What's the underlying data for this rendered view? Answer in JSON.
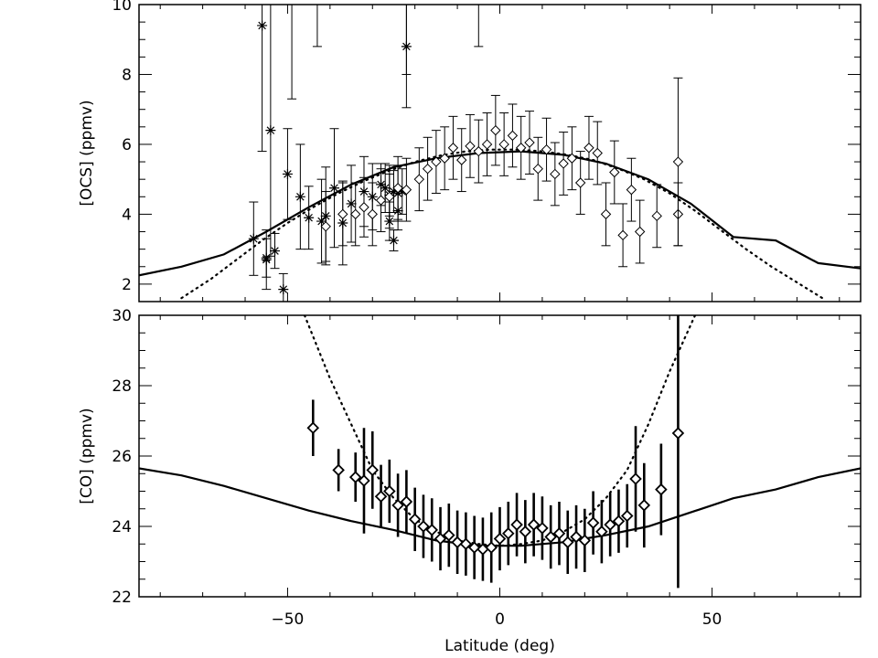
{
  "chart_data": [
    {
      "type": "scatter",
      "panel": "top",
      "ylabel": "[OCS]  (ppmv)",
      "xlim": [
        -85,
        85
      ],
      "ylim": [
        1.5,
        10
      ],
      "xticks": [
        -50,
        0,
        50
      ],
      "yticks": [
        2,
        4,
        6,
        8,
        10
      ],
      "grid": false,
      "series": [
        {
          "kind": "model-solid",
          "x": [
            -85,
            -75,
            -65,
            -55,
            -45,
            -35,
            -25,
            -15,
            -5,
            5,
            15,
            25,
            35,
            45,
            55,
            65,
            75,
            85
          ],
          "y": [
            2.25,
            2.5,
            2.85,
            3.5,
            4.2,
            4.85,
            5.35,
            5.6,
            5.75,
            5.8,
            5.7,
            5.45,
            5.0,
            4.3,
            3.35,
            3.25,
            2.6,
            2.45
          ]
        },
        {
          "kind": "model-dotted",
          "x": [
            -75,
            -68,
            -62,
            -56,
            -50,
            -44,
            -38,
            -32,
            -26,
            -20,
            -14,
            -8,
            -2,
            4,
            10,
            16,
            22,
            28,
            34,
            40,
            46,
            52,
            58,
            64,
            70,
            76
          ],
          "y": [
            1.6,
            2.15,
            2.7,
            3.25,
            3.75,
            4.2,
            4.6,
            4.95,
            5.25,
            5.5,
            5.68,
            5.8,
            5.85,
            5.85,
            5.8,
            5.7,
            5.55,
            5.3,
            5.0,
            4.6,
            4.1,
            3.55,
            3.0,
            2.5,
            2.05,
            1.6
          ]
        },
        {
          "kind": "asterisk-measurements",
          "x": [
            -58,
            -56,
            -55,
            -55,
            -54,
            -53,
            -51,
            -50,
            -47,
            -45,
            -42,
            -41,
            -39,
            -37,
            -35,
            -32,
            -30,
            -28,
            -27,
            -26,
            -26,
            -25,
            -25,
            -24,
            -24,
            -23,
            -22
          ],
          "y": [
            3.3,
            9.4,
            2.75,
            2.7,
            6.4,
            2.95,
            1.85,
            5.15,
            4.5,
            3.9,
            3.8,
            3.95,
            4.75,
            3.75,
            4.3,
            4.65,
            4.5,
            4.85,
            4.75,
            3.8,
            4.55,
            4.65,
            3.25,
            4.1,
            4.6,
            4.65,
            8.8
          ],
          "err": [
            1.05,
            3.6,
            0.55,
            0.85,
            3.6,
            0.5,
            0.45,
            1.3,
            1.5,
            0.9,
            1.2,
            1.4,
            1.7,
            1.2,
            1.1,
            1.0,
            0.95,
            0.6,
            0.7,
            0.55,
            0.6,
            0.6,
            0.3,
            0.55,
            0.8,
            0.65,
            1.75
          ]
        },
        {
          "kind": "diamond-measurements",
          "x": [
            -41,
            -37,
            -34,
            -32,
            -30,
            -28,
            -26,
            -24,
            -22,
            -19,
            -17,
            -15,
            -13,
            -11,
            -9,
            -7,
            -5,
            -3,
            -1,
            1,
            3,
            5,
            7,
            9,
            11,
            13,
            15,
            17,
            19,
            21,
            23,
            25,
            27,
            29,
            31,
            33,
            37,
            42
          ],
          "y": [
            3.65,
            4.0,
            4.0,
            4.2,
            4.0,
            4.4,
            4.5,
            4.75,
            4.7,
            5.0,
            5.3,
            5.5,
            5.6,
            5.9,
            5.55,
            5.95,
            5.8,
            6.0,
            6.4,
            6.0,
            6.25,
            5.9,
            6.05,
            5.3,
            5.85,
            5.15,
            5.45,
            5.6,
            4.9,
            5.9,
            5.75,
            4.0,
            5.2,
            3.4,
            4.7,
            3.5,
            3.95,
            4.0
          ],
          "err": [
            1.0,
            0.9,
            0.9,
            0.85,
            0.9,
            0.9,
            0.9,
            0.9,
            0.9,
            0.9,
            0.9,
            0.9,
            0.9,
            0.9,
            0.9,
            0.9,
            0.9,
            0.9,
            1.0,
            0.9,
            0.9,
            0.9,
            0.9,
            0.9,
            0.9,
            0.9,
            0.9,
            0.9,
            0.9,
            0.9,
            0.9,
            0.9,
            0.9,
            0.9,
            0.9,
            0.9,
            0.9,
            0.9
          ]
        },
        {
          "kind": "diamond-outlier",
          "x": [
            42
          ],
          "y": [
            5.5
          ],
          "err": [
            2.4
          ]
        },
        {
          "kind": "bar-only",
          "x": [
            -49,
            -43,
            -22,
            -5
          ],
          "y": [
            10.0,
            9.5,
            9.2,
            10.0
          ],
          "err": [
            2.7,
            0.7,
            1.2,
            1.2
          ]
        }
      ]
    },
    {
      "type": "scatter",
      "panel": "bottom",
      "xlabel": "Latitude  (deg)",
      "ylabel": "[CO]  (ppmv)",
      "xlim": [
        -85,
        85
      ],
      "ylim": [
        22,
        30
      ],
      "xticks": [
        -50,
        0,
        50
      ],
      "yticks": [
        22,
        24,
        26,
        28,
        30
      ],
      "grid": false,
      "series": [
        {
          "kind": "model-solid",
          "x": [
            -85,
            -75,
            -65,
            -55,
            -45,
            -35,
            -25,
            -15,
            -5,
            5,
            15,
            25,
            35,
            45,
            55,
            65,
            75,
            85
          ],
          "y": [
            25.65,
            25.45,
            25.15,
            24.8,
            24.45,
            24.15,
            23.9,
            23.6,
            23.45,
            23.45,
            23.55,
            23.75,
            24.0,
            24.4,
            24.8,
            25.05,
            25.4,
            25.65
          ]
        },
        {
          "kind": "model-dotted",
          "x": [
            -46,
            -40,
            -35,
            -30,
            -25,
            -20,
            -15,
            -10,
            -5,
            0,
            5,
            10,
            15,
            20,
            25,
            30,
            35,
            40,
            46
          ],
          "y": [
            30.0,
            28.2,
            26.9,
            25.6,
            24.8,
            24.2,
            23.85,
            23.6,
            23.5,
            23.45,
            23.5,
            23.6,
            23.85,
            24.2,
            24.8,
            25.6,
            26.9,
            28.4,
            30.0
          ]
        },
        {
          "kind": "diamond-measurements",
          "x": [
            -44,
            -38,
            -34,
            -32,
            -30,
            -28,
            -26,
            -24,
            -22,
            -20,
            -18,
            -16,
            -14,
            -12,
            -10,
            -8,
            -6,
            -4,
            -2,
            0,
            2,
            4,
            6,
            8,
            10,
            12,
            14,
            16,
            18,
            20,
            22,
            24,
            26,
            28,
            30,
            32,
            34,
            38,
            42
          ],
          "y": [
            26.8,
            25.6,
            25.4,
            25.3,
            25.6,
            24.85,
            25.0,
            24.6,
            24.7,
            24.2,
            24.0,
            23.9,
            23.65,
            23.75,
            23.55,
            23.5,
            23.4,
            23.35,
            23.4,
            23.65,
            23.8,
            24.05,
            23.85,
            24.05,
            23.95,
            23.7,
            23.8,
            23.55,
            23.7,
            23.6,
            24.1,
            23.85,
            24.05,
            24.15,
            24.3,
            25.35,
            24.6,
            25.05,
            26.65
          ]
        }
      ],
      "error_bars": {
        "x": [
          -44,
          -38,
          -34,
          -32,
          -30,
          -28,
          -26,
          -24,
          -22,
          -20,
          -18,
          -16,
          -14,
          -12,
          -10,
          -8,
          -6,
          -4,
          -2,
          0,
          2,
          4,
          6,
          8,
          10,
          12,
          14,
          16,
          18,
          20,
          22,
          24,
          26,
          28,
          30,
          32,
          34,
          38,
          42
        ],
        "err": [
          0.8,
          0.6,
          0.7,
          1.5,
          1.1,
          0.9,
          0.9,
          0.9,
          0.9,
          0.9,
          0.9,
          0.9,
          0.9,
          0.9,
          0.9,
          0.9,
          0.9,
          0.9,
          1.0,
          0.9,
          0.9,
          0.9,
          0.9,
          0.9,
          0.9,
          0.9,
          0.9,
          0.9,
          0.9,
          0.9,
          0.9,
          0.9,
          0.9,
          0.9,
          0.9,
          1.5,
          1.2,
          1.3,
          4.4
        ]
      }
    }
  ]
}
